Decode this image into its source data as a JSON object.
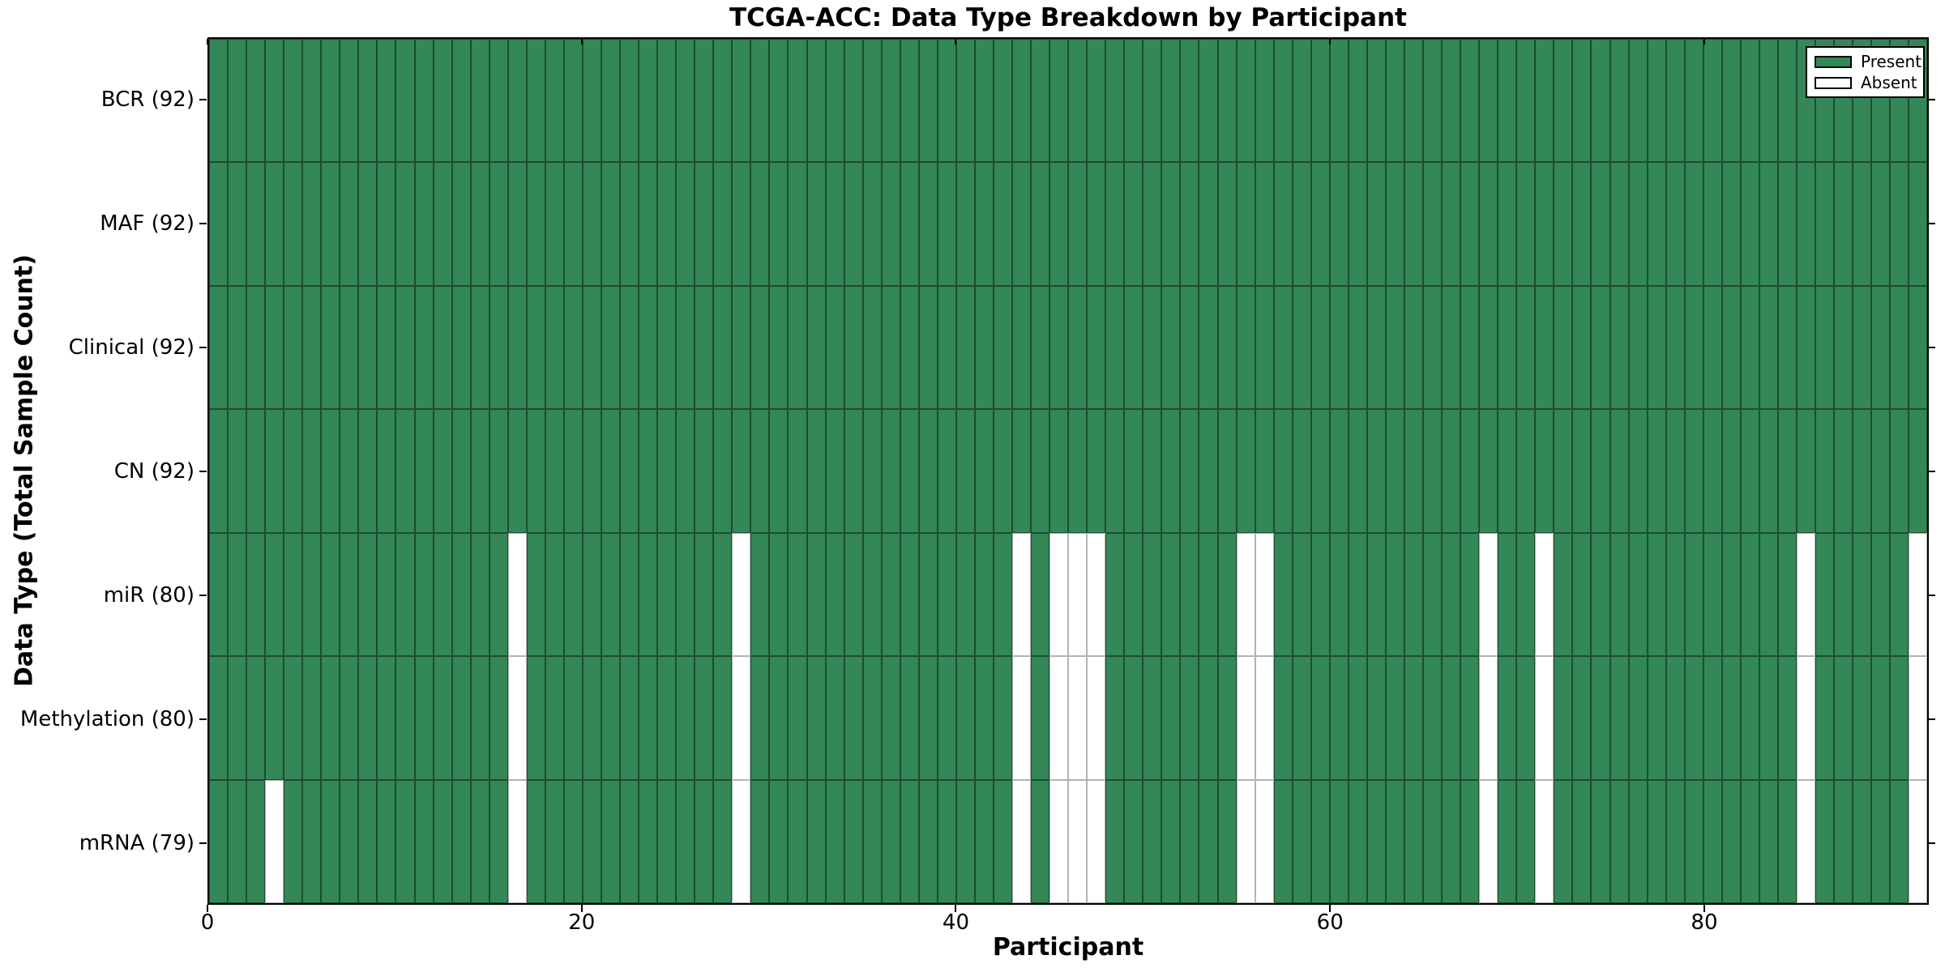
{
  "chart_data": {
    "type": "heatmap",
    "title": "TCGA-ACC: Data Type Breakdown by Participant",
    "xlabel": "Participant",
    "ylabel": "Data Type (Total Sample Count)",
    "n_participants": 92,
    "x_range": [
      0,
      92
    ],
    "x_ticks": [
      0,
      20,
      40,
      60,
      80
    ],
    "grid": "cell-edges",
    "legend_position": "upper right",
    "rows": [
      {
        "name": "BCR",
        "label": "BCR (92)",
        "total_samples": 92,
        "absent_participants": []
      },
      {
        "name": "MAF",
        "label": "MAF (92)",
        "total_samples": 92,
        "absent_participants": []
      },
      {
        "name": "Clinical",
        "label": "Clinical (92)",
        "total_samples": 92,
        "absent_participants": []
      },
      {
        "name": "CN",
        "label": "CN (92)",
        "total_samples": 92,
        "absent_participants": []
      },
      {
        "name": "miR",
        "label": "miR (80)",
        "total_samples": 80,
        "absent_participants": [
          16,
          28,
          43,
          45,
          46,
          47,
          55,
          56,
          68,
          71,
          85,
          91
        ]
      },
      {
        "name": "Methylation",
        "label": "Methylation (80)",
        "total_samples": 80,
        "absent_participants": [
          16,
          28,
          43,
          45,
          46,
          47,
          55,
          56,
          68,
          71,
          85,
          91
        ]
      },
      {
        "name": "mRNA",
        "label": "mRNA (79)",
        "total_samples": 79,
        "absent_participants": [
          3,
          16,
          28,
          43,
          45,
          46,
          47,
          55,
          56,
          68,
          71,
          85,
          91
        ]
      }
    ],
    "legend": [
      {
        "label": "Present",
        "color": "#348757"
      },
      {
        "label": "Absent",
        "color": "#ffffff"
      }
    ],
    "colors": {
      "present": "#348757",
      "absent": "#ffffff",
      "present_edge": "#1d4d30",
      "absent_edge": "#b3b3b3",
      "spine": "#000000",
      "text": "#000000"
    }
  }
}
